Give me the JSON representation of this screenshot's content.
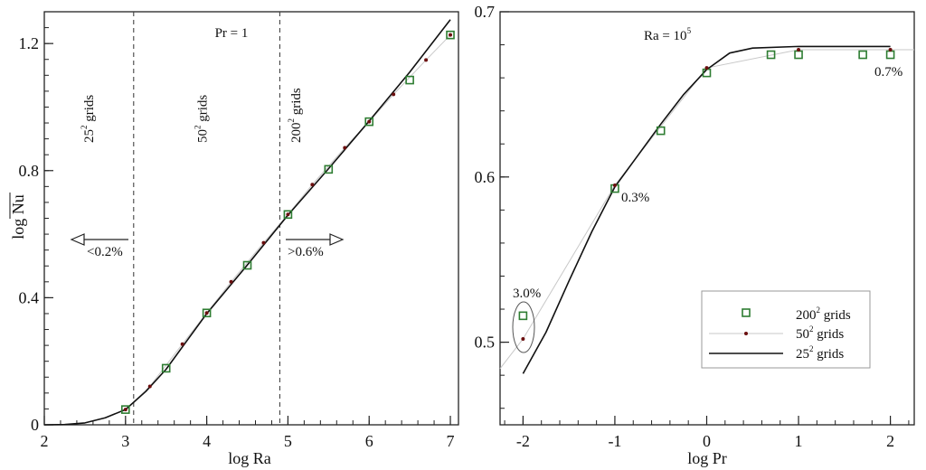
{
  "chart_data": [
    {
      "type": "line",
      "title": "Pr = 1",
      "xlabel": "log Ra",
      "ylabel": "log Nu",
      "xlim": [
        2,
        7.1
      ],
      "ylim": [
        0,
        1.3
      ],
      "xticks": [
        2,
        3,
        4,
        5,
        6,
        7
      ],
      "xtick_labels": [
        "2",
        "3",
        "4",
        "5",
        "6",
        "7"
      ],
      "yticks": [
        0,
        0.4,
        0.8,
        1.2
      ],
      "ytick_labels": [
        "0",
        "0.4",
        "0.8",
        "1.2"
      ],
      "grid": false,
      "series": [
        {
          "name": "200² grids",
          "marker": "square",
          "color": "#2e7d32",
          "x": [
            3,
            3.5,
            4,
            4.5,
            5,
            5.5,
            6,
            6.5,
            7
          ],
          "y": [
            0.048,
            0.178,
            0.352,
            0.502,
            0.662,
            0.804,
            0.954,
            1.085,
            1.227
          ]
        },
        {
          "name": "50² grids",
          "marker": "dot",
          "color": "#6b0f0f",
          "line_color": "#c8c8c8",
          "x": [
            3,
            3.3,
            3.7,
            4,
            4.3,
            4.7,
            5,
            5.3,
            5.7,
            6,
            6.3,
            6.7,
            7
          ],
          "y": [
            0.048,
            0.121,
            0.254,
            0.352,
            0.45,
            0.573,
            0.662,
            0.756,
            0.872,
            0.954,
            1.04,
            1.148,
            1.227
          ]
        },
        {
          "name": "25² grids",
          "marker": "none",
          "color": "#111111",
          "x": [
            2,
            2.25,
            2.5,
            2.75,
            3,
            3.25,
            3.5,
            4,
            4.5,
            5,
            5.5,
            6,
            6.5,
            7
          ],
          "y": [
            0,
            0.001,
            0.006,
            0.022,
            0.048,
            0.105,
            0.175,
            0.35,
            0.503,
            0.66,
            0.806,
            0.956,
            1.11,
            1.275
          ]
        }
      ],
      "vlines": [
        3.1,
        4.9
      ],
      "region_labels": [
        {
          "base": "25",
          "sup": "2",
          "rest": " grids",
          "x": 2.6
        },
        {
          "base": "50",
          "sup": "2",
          "rest": " grids",
          "x": 4.0
        },
        {
          "base": "200",
          "sup": "2",
          "rest": " grids",
          "x": 5.15
        }
      ],
      "annotations": {
        "left_arrow_label": "<0.2%",
        "right_arrow_label": ">0.6%"
      }
    },
    {
      "type": "line",
      "title_base": "Ra = 10",
      "title_sup": "5",
      "xlabel": "log Pr",
      "ylabel": "",
      "xlim": [
        -2.25,
        2.26
      ],
      "ylim": [
        0.45,
        0.7
      ],
      "xticks": [
        -2,
        -1,
        0,
        1,
        2
      ],
      "xtick_labels": [
        "-2",
        "-1",
        "0",
        "1",
        "2"
      ],
      "yticks": [
        0.5,
        0.6,
        0.7
      ],
      "ytick_labels": [
        "0.5",
        "0.6",
        "0.7"
      ],
      "grid": false,
      "series": [
        {
          "name": "200² grids",
          "marker": "square",
          "color": "#2e7d32",
          "x": [
            -2,
            -1,
            -0.5,
            0,
            0.7,
            1,
            1.7,
            2
          ],
          "y": [
            0.516,
            0.593,
            0.628,
            0.663,
            0.674,
            0.674,
            0.674,
            0.674
          ]
        },
        {
          "name": "50² grids",
          "marker": "dot",
          "color": "#6b0f0f",
          "line_color": "#c8c8c8",
          "x": [
            -2,
            -1,
            0,
            1,
            2
          ],
          "y": [
            0.502,
            0.595,
            0.666,
            0.677,
            0.677
          ],
          "line_x": [
            -2.25,
            -2,
            -1,
            0,
            1,
            2,
            2.26
          ],
          "line_y": [
            0.484,
            0.502,
            0.595,
            0.666,
            0.677,
            0.677,
            0.677
          ]
        },
        {
          "name": "25² grids",
          "marker": "none",
          "color": "#111111",
          "x": [
            -2,
            -1.75,
            -1.5,
            -1.25,
            -1,
            -0.75,
            -0.5,
            -0.25,
            0,
            0.25,
            0.5,
            1,
            2
          ],
          "y": [
            0.481,
            0.506,
            0.537,
            0.567,
            0.594,
            0.613,
            0.632,
            0.65,
            0.665,
            0.675,
            0.678,
            0.679,
            0.679
          ]
        }
      ],
      "annotations": {
        "pct_low": "3.0%",
        "pct_mid": "0.3%",
        "pct_high": "0.7%"
      },
      "legend": {
        "placement": "bottom-right",
        "entries": [
          {
            "base": "200",
            "sup": "2",
            "rest": " grids"
          },
          {
            "base": "50",
            "sup": "2",
            "rest": " grids"
          },
          {
            "base": "25",
            "sup": "2",
            "rest": " grids"
          }
        ]
      }
    }
  ]
}
